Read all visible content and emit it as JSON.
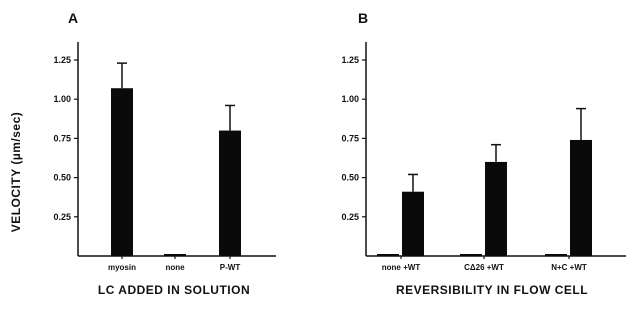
{
  "figure": {
    "ylabel": "VELOCITY (µm/sec)"
  },
  "chart_data": [
    {
      "type": "bar",
      "panel": "A",
      "xlabel": "LC ADDED IN SOLUTION",
      "ylabel": "VELOCITY (µm/sec)",
      "categories": [
        "myosin",
        "none",
        "P-WT"
      ],
      "series": [
        {
          "values": [
            1.07,
            0.01,
            0.8
          ],
          "errors": [
            0.16,
            0,
            0.16
          ]
        }
      ],
      "ylim": [
        0,
        1.25
      ],
      "yticks": [
        0.25,
        0.5,
        0.75,
        1.0,
        1.25
      ],
      "ytick_labels": [
        "0.25",
        "0.50",
        "0.75",
        "1.00",
        "1.25"
      ],
      "grid": false
    },
    {
      "type": "bar",
      "panel": "B",
      "xlabel": "REVERSIBILITY IN FLOW CELL",
      "categories": [
        "none +WT",
        "CΔ26 +WT",
        "N+C +WT"
      ],
      "series": [
        {
          "values": [
            0.01,
            0.01,
            0.01
          ],
          "errors": [
            0,
            0,
            0
          ]
        },
        {
          "values": [
            0.41,
            0.6,
            0.74
          ],
          "errors": [
            0.11,
            0.11,
            0.2
          ]
        }
      ],
      "ylim": [
        0,
        1.25
      ],
      "yticks": [
        0.25,
        0.5,
        0.75,
        1.0,
        1.25
      ],
      "ytick_labels": [
        "0.25",
        "0.50",
        "0.75",
        "1.00",
        "1.25"
      ],
      "grid": false
    }
  ]
}
